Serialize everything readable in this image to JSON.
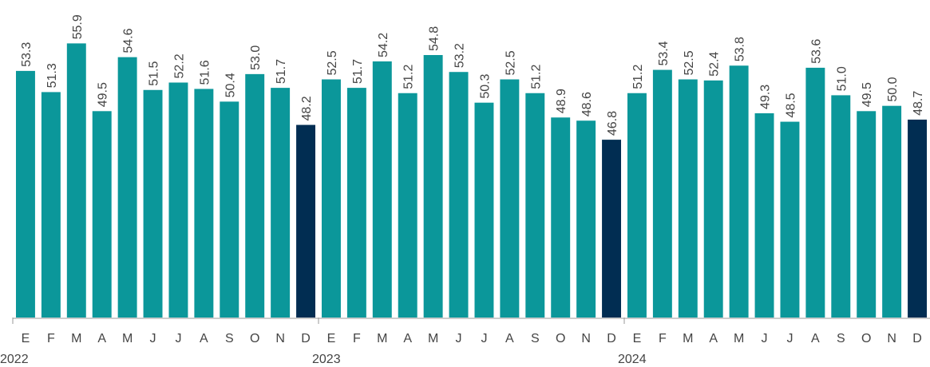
{
  "chart_data": {
    "type": "bar",
    "categories": [
      "E",
      "F",
      "M",
      "A",
      "M",
      "J",
      "J",
      "A",
      "S",
      "O",
      "N",
      "D",
      "E",
      "F",
      "M",
      "A",
      "M",
      "J",
      "J",
      "A",
      "S",
      "O",
      "N",
      "D",
      "E",
      "F",
      "M",
      "A",
      "M",
      "J",
      "J",
      "A",
      "S",
      "O",
      "N",
      "D"
    ],
    "years": [
      "2022",
      "2023",
      "2024"
    ],
    "values": [
      53.3,
      51.3,
      55.9,
      49.5,
      54.6,
      51.5,
      52.2,
      51.6,
      50.4,
      53.0,
      51.7,
      48.2,
      52.5,
      51.7,
      54.2,
      51.2,
      54.8,
      53.2,
      50.3,
      52.5,
      51.2,
      48.9,
      48.6,
      46.8,
      51.2,
      53.4,
      52.5,
      52.4,
      53.8,
      49.3,
      48.5,
      53.6,
      51.0,
      49.5,
      50.0,
      48.7
    ],
    "value_labels": [
      "53.3",
      "51.3",
      "55.9",
      "49.5",
      "54.6",
      "51.5",
      "52.2",
      "51.6",
      "50.4",
      "53.0",
      "51.7",
      "48.2",
      "52.5",
      "51.7",
      "54.2",
      "51.2",
      "54.8",
      "53.2",
      "50.3",
      "52.5",
      "51.2",
      "48.9",
      "48.6",
      "46.8",
      "51.2",
      "53.4",
      "52.5",
      "52.4",
      "53.8",
      "49.3",
      "48.5",
      "53.6",
      "51.0",
      "49.5",
      "50.0",
      "48.7"
    ],
    "color": "#0b979a",
    "highlight_color": "#012d52",
    "highlight_every": 12,
    "ylim": [
      30,
      60
    ]
  }
}
